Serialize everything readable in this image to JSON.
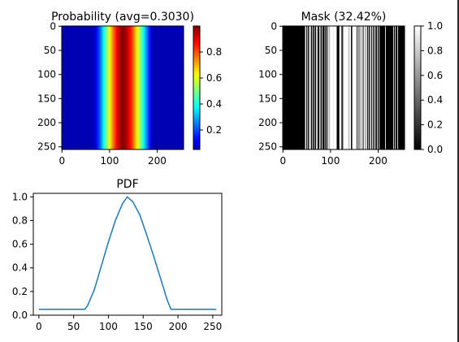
{
  "chart_data": [
    {
      "type": "heatmap",
      "title": "Probability (avg=0.3030)",
      "colormap": "jet",
      "shape": [
        256,
        256
      ],
      "column_profile": {
        "x": [
          0,
          66,
          70,
          80,
          90,
          100,
          110,
          120,
          127,
          135,
          145,
          155,
          165,
          175,
          185,
          190,
          255
        ],
        "values": [
          0.05,
          0.05,
          0.08,
          0.22,
          0.42,
          0.62,
          0.8,
          0.94,
          1.0,
          0.96,
          0.85,
          0.68,
          0.5,
          0.31,
          0.12,
          0.05,
          0.05
        ]
      },
      "xticks": [
        "0",
        "100",
        "200"
      ],
      "yticks": [
        "0",
        "50",
        "100",
        "150",
        "200",
        "250"
      ],
      "colorbar": {
        "ticks": [
          "0.2",
          "0.4",
          "0.6",
          "0.8"
        ],
        "range": [
          0.05,
          1.0
        ]
      }
    },
    {
      "type": "heatmap",
      "title": "Mask (32.42%)",
      "colormap": "gray",
      "shape": [
        256,
        256
      ],
      "white_columns": [
        47,
        48,
        51,
        55,
        56,
        58,
        62,
        66,
        70,
        72,
        77,
        78,
        82,
        88,
        92,
        95,
        96,
        97,
        99,
        100,
        101,
        102,
        103,
        104,
        105,
        106,
        107,
        108,
        109,
        110,
        111,
        112,
        119,
        120,
        121,
        122,
        126,
        128,
        129,
        130,
        131,
        132,
        133,
        134,
        135,
        136,
        137,
        138,
        140,
        141,
        142,
        146,
        147,
        148,
        149,
        150,
        151,
        152,
        153,
        154,
        157,
        158,
        161,
        163,
        164,
        165,
        167,
        170,
        171,
        172,
        174,
        176,
        179,
        183,
        185,
        188,
        191,
        194,
        198,
        202,
        215,
        232,
        236,
        241
      ],
      "xticks": [
        "0",
        "100",
        "200"
      ],
      "yticks": [
        "0",
        "50",
        "100",
        "150",
        "200",
        "250"
      ],
      "colorbar": {
        "ticks": [
          "0.0",
          "0.2",
          "0.4",
          "0.6",
          "0.8",
          "1.0"
        ],
        "range": [
          0,
          1
        ]
      }
    },
    {
      "type": "line",
      "title": "PDF",
      "xlim": [
        -8,
        263
      ],
      "ylim": [
        0,
        1.03
      ],
      "xticks": [
        "0",
        "50",
        "100",
        "150",
        "200",
        "250"
      ],
      "yticks": [
        "0.0",
        "0.2",
        "0.4",
        "0.6",
        "0.8",
        "1.0"
      ],
      "series": [
        {
          "color": "#1f77b4",
          "x": [
            0,
            66,
            70,
            80,
            90,
            100,
            110,
            120,
            127,
            135,
            145,
            155,
            165,
            175,
            185,
            190,
            255
          ],
          "y": [
            0.05,
            0.05,
            0.08,
            0.22,
            0.42,
            0.62,
            0.8,
            0.94,
            1.0,
            0.96,
            0.85,
            0.68,
            0.5,
            0.31,
            0.12,
            0.05,
            0.05
          ]
        }
      ]
    }
  ]
}
